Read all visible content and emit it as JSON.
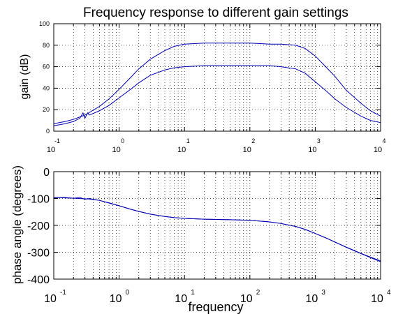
{
  "chart_data": [
    {
      "type": "line",
      "title": "Frequency response to different gain settings",
      "xlabel": "",
      "ylabel": "gain (dB)",
      "xscale": "log",
      "xlim": [
        0.1,
        10000
      ],
      "ylim": [
        0,
        100
      ],
      "yticks": [
        "0",
        "20",
        "40",
        "60",
        "80",
        "100"
      ],
      "xticks": [
        {
          "base": "10",
          "exp": "-1"
        },
        {
          "base": "10",
          "exp": "0"
        },
        {
          "base": "10",
          "exp": "1"
        },
        {
          "base": "10",
          "exp": "2"
        },
        {
          "base": "10",
          "exp": "3"
        },
        {
          "base": "10",
          "exp": "4"
        }
      ],
      "grid": true,
      "color": "#0000b4",
      "series": [
        {
          "x": [
            0.1,
            0.15,
            0.2,
            0.3,
            0.5,
            0.7,
            1,
            1.5,
            2,
            3,
            5,
            7,
            10,
            20,
            50,
            100,
            200,
            300,
            500,
            700,
            1000,
            1500,
            2000,
            3000,
            5000,
            7000,
            10000
          ],
          "values": [
            7,
            9,
            11,
            15,
            23,
            30,
            39,
            50,
            58,
            67,
            75,
            79,
            81,
            82,
            82,
            82,
            81,
            81,
            80,
            77,
            70,
            59,
            51,
            38,
            26,
            19,
            14
          ]
        },
        {
          "x": [
            0.1,
            0.15,
            0.2,
            0.25,
            0.28,
            0.3,
            0.33,
            0.35,
            0.5,
            0.7,
            1,
            1.5,
            2,
            3,
            5,
            7,
            10,
            20,
            50,
            100,
            200,
            300,
            500,
            700,
            1000,
            1500,
            2000,
            3000,
            5000,
            7000,
            10000
          ],
          "values": [
            5,
            7,
            9,
            12,
            17,
            12,
            17,
            15,
            19,
            24,
            31,
            39,
            45,
            52,
            57,
            59,
            60,
            61,
            61,
            61,
            61,
            60,
            58,
            54,
            46,
            37,
            30,
            22,
            14,
            10,
            8
          ]
        }
      ]
    },
    {
      "type": "line",
      "title": "",
      "xlabel": "frequency",
      "ylabel": "phase angle (degrees)",
      "xscale": "log",
      "xlim": [
        0.1,
        10000
      ],
      "ylim": [
        -400,
        0
      ],
      "yticks": [
        "-400",
        "-300",
        "-200",
        "-100",
        "0"
      ],
      "xticks": [
        {
          "base": "10",
          "exp": "-1"
        },
        {
          "base": "10",
          "exp": "0"
        },
        {
          "base": "10",
          "exp": "1"
        },
        {
          "base": "10",
          "exp": "2"
        },
        {
          "base": "10",
          "exp": "3"
        },
        {
          "base": "10",
          "exp": "4"
        }
      ],
      "grid": true,
      "color": "#0000b4",
      "series": [
        {
          "x": [
            0.1,
            0.15,
            0.2,
            0.25,
            0.3,
            0.35,
            0.5,
            0.7,
            1,
            1.5,
            2,
            3,
            5,
            7,
            10,
            20,
            50,
            100,
            200,
            300,
            500,
            700,
            1000,
            1500,
            2000,
            3000,
            5000,
            7000,
            10000
          ],
          "values": [
            -97,
            -96,
            -99,
            -96,
            -103,
            -100,
            -107,
            -116,
            -127,
            -140,
            -148,
            -158,
            -167,
            -171,
            -174,
            -177,
            -179,
            -181,
            -187,
            -193,
            -204,
            -215,
            -230,
            -248,
            -262,
            -282,
            -305,
            -320,
            -335
          ]
        },
        {
          "x": [
            0.1,
            0.2,
            0.35,
            0.5,
            0.7,
            1,
            1.5,
            2,
            3,
            5,
            7,
            10,
            20,
            50,
            100,
            200,
            300,
            500,
            700,
            1000,
            1500,
            2000,
            3000,
            5000,
            7000,
            10000
          ],
          "values": [
            -96,
            -99,
            -102,
            -107,
            -117,
            -127,
            -140,
            -148,
            -158,
            -167,
            -171,
            -174,
            -177,
            -179,
            -181,
            -187,
            -193,
            -204,
            -215,
            -230,
            -248,
            -262,
            -281,
            -304,
            -318,
            -332
          ]
        }
      ]
    }
  ]
}
